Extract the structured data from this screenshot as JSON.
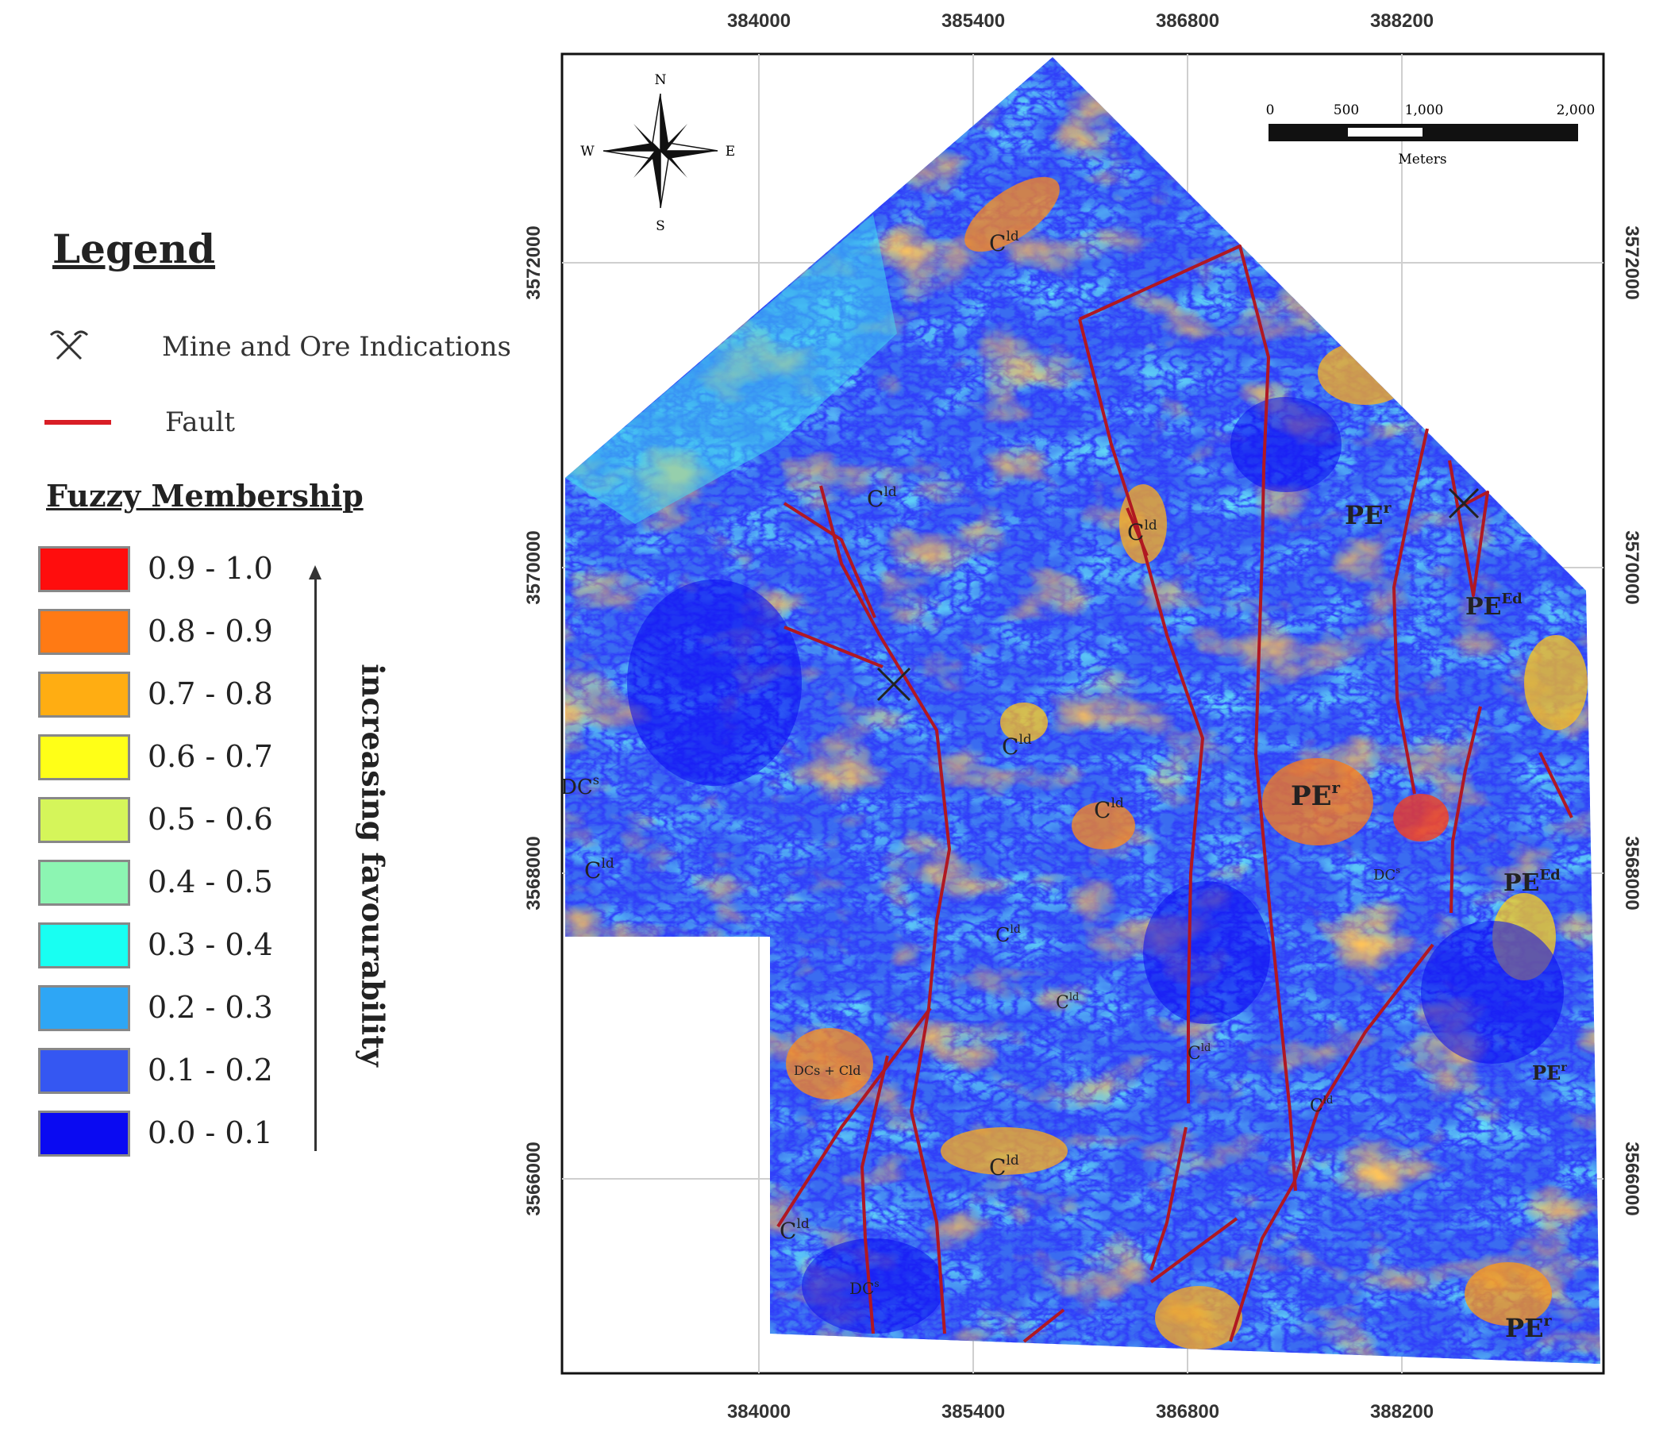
{
  "legend": {
    "title": "Legend",
    "mine_label": "Mine and Ore Indications",
    "fault_label": "Fault",
    "fuzzy_title": "Fuzzy Membership",
    "arrow_label": "increasing favourability",
    "classes": [
      {
        "label": "0.9 - 1.0",
        "color": "#ff0d0d"
      },
      {
        "label": "0.8 - 0.9",
        "color": "#ff7a14"
      },
      {
        "label": "0.7 - 0.8",
        "color": "#ffad12"
      },
      {
        "label": "0.6 - 0.7",
        "color": "#ffff17"
      },
      {
        "label": "0.5 - 0.6",
        "color": "#d5f55a"
      },
      {
        "label": "0.4 - 0.5",
        "color": "#8cf5b2"
      },
      {
        "label": "0.3 - 0.4",
        "color": "#18fff2"
      },
      {
        "label": "0.2 - 0.3",
        "color": "#2ea6f5"
      },
      {
        "label": "0.1 - 0.2",
        "color": "#3557f2"
      },
      {
        "label": "0.0 - 0.1",
        "color": "#0a0af2"
      }
    ]
  },
  "map": {
    "x_ticks": [
      "384000",
      "385400",
      "386800",
      "388200"
    ],
    "y_ticks": [
      "3572000",
      "3570000",
      "3568000",
      "3566000"
    ],
    "fault_color": "#b01822",
    "compass": {
      "n": "N",
      "s": "S",
      "e": "E",
      "w": "W"
    },
    "scale": {
      "labels": [
        "0",
        "500",
        "1,000",
        "2,000"
      ],
      "unit": "Meters"
    },
    "units": [
      {
        "text": "C",
        "sup": "ld"
      },
      {
        "text": "C",
        "sup": "ld"
      },
      {
        "text": "C",
        "sup": "ld"
      },
      {
        "text": "C",
        "sup": "ld"
      },
      {
        "text": "C",
        "sup": "ld"
      },
      {
        "text": "C",
        "sup": "ld"
      },
      {
        "text": "C",
        "sup": "ld"
      },
      {
        "text": "C",
        "sup": "ld"
      },
      {
        "text": "C",
        "sup": "ld"
      },
      {
        "text": "C",
        "sup": "ld"
      },
      {
        "text": "C",
        "sup": "ld"
      },
      {
        "text": "C",
        "sup": "ld"
      },
      {
        "text": "PE",
        "sup": "r"
      },
      {
        "text": "PE",
        "sup": "Ed"
      },
      {
        "text": "PE",
        "sup": "r"
      },
      {
        "text": "PE",
        "sup": "Ed"
      },
      {
        "text": "PE",
        "sup": "r"
      },
      {
        "text": "PE",
        "sup": "r"
      },
      {
        "text": "DC",
        "sup": "s"
      },
      {
        "text": "DC",
        "sup": "s"
      },
      {
        "text": "DC",
        "sup": "s"
      },
      {
        "text": "DCs + Cld",
        "sup": ""
      }
    ]
  }
}
